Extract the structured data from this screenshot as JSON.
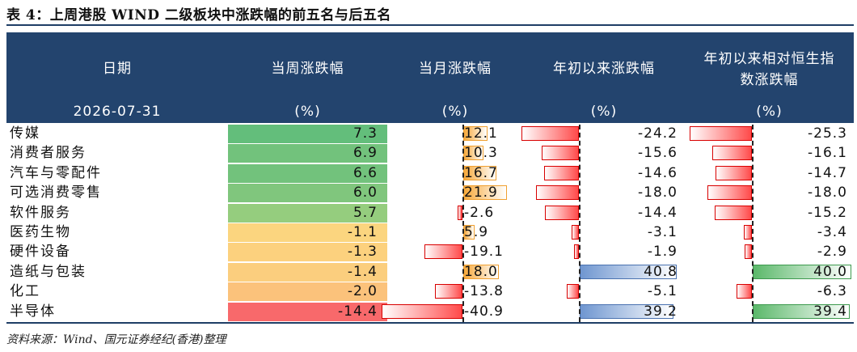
{
  "title": "表 4：上周港股 WIND 二级板块中涨跌幅的前五名与后五名",
  "source": "资料来源：Wind、国元证券经纪(香港)整理",
  "header": {
    "col_date": "日期",
    "col_week": "当周涨跌幅",
    "col_month": "当月涨跌幅",
    "col_ytd": "年初以来涨跌幅",
    "col_rel_line1": "年初以来相对恒生指",
    "col_rel_line2": "数涨跌幅",
    "date": "2026-07-31",
    "unit": "(%)"
  },
  "colors": {
    "header_bg": "#23446e",
    "positive_bar": "red",
    "negative_bar_month": "orange",
    "ytd_negative": "red",
    "ytd_positive": "blue",
    "rel_positive": "green"
  },
  "rows": [
    {
      "name": "传媒",
      "week": "7.3",
      "month": "12.1",
      "ytd": "-24.2",
      "rel": "-25.3",
      "week_v": 7.3,
      "month_v": 12.1,
      "ytd_v": -24.2,
      "rel_v": -25.3
    },
    {
      "name": "消费者服务",
      "week": "6.9",
      "month": "10.3",
      "ytd": "-15.6",
      "rel": "-16.1",
      "week_v": 6.9,
      "month_v": 10.3,
      "ytd_v": -15.6,
      "rel_v": -16.1
    },
    {
      "name": "汽车与零配件",
      "week": "6.6",
      "month": "16.7",
      "ytd": "-14.6",
      "rel": "-14.7",
      "week_v": 6.6,
      "month_v": 16.7,
      "ytd_v": -14.6,
      "rel_v": -14.7
    },
    {
      "name": "可选消费零售",
      "week": "6.0",
      "month": "21.9",
      "ytd": "-18.0",
      "rel": "-18.0",
      "week_v": 6.0,
      "month_v": 21.9,
      "ytd_v": -18.0,
      "rel_v": -18.0
    },
    {
      "name": "软件服务",
      "week": "5.7",
      "month": "-2.6",
      "ytd": "-14.4",
      "rel": "-15.2",
      "week_v": 5.7,
      "month_v": -2.6,
      "ytd_v": -14.4,
      "rel_v": -15.2
    },
    {
      "name": "医药生物",
      "week": "-1.1",
      "month": "5.9",
      "ytd": "-3.1",
      "rel": "-3.4",
      "week_v": -1.1,
      "month_v": 5.9,
      "ytd_v": -3.1,
      "rel_v": -3.4
    },
    {
      "name": "硬件设备",
      "week": "-1.3",
      "month": "-19.1",
      "ytd": "-1.9",
      "rel": "-2.9",
      "week_v": -1.3,
      "month_v": -19.1,
      "ytd_v": -1.9,
      "rel_v": -2.9
    },
    {
      "name": "造纸与包装",
      "week": "-1.4",
      "month": "18.0",
      "ytd": "40.8",
      "rel": "40.0",
      "week_v": -1.4,
      "month_v": 18.0,
      "ytd_v": 40.8,
      "rel_v": 40.0
    },
    {
      "name": "化工",
      "week": "-2.0",
      "month": "-13.8",
      "ytd": "-5.1",
      "rel": "-6.3",
      "week_v": -2.0,
      "month_v": -13.8,
      "ytd_v": -5.1,
      "rel_v": -6.3
    },
    {
      "name": "半导体",
      "week": "-14.4",
      "month": "-40.9",
      "ytd": "39.2",
      "rel": "39.4",
      "week_v": -14.4,
      "month_v": -40.9,
      "ytd_v": 39.2,
      "rel_v": 39.4
    }
  ]
}
